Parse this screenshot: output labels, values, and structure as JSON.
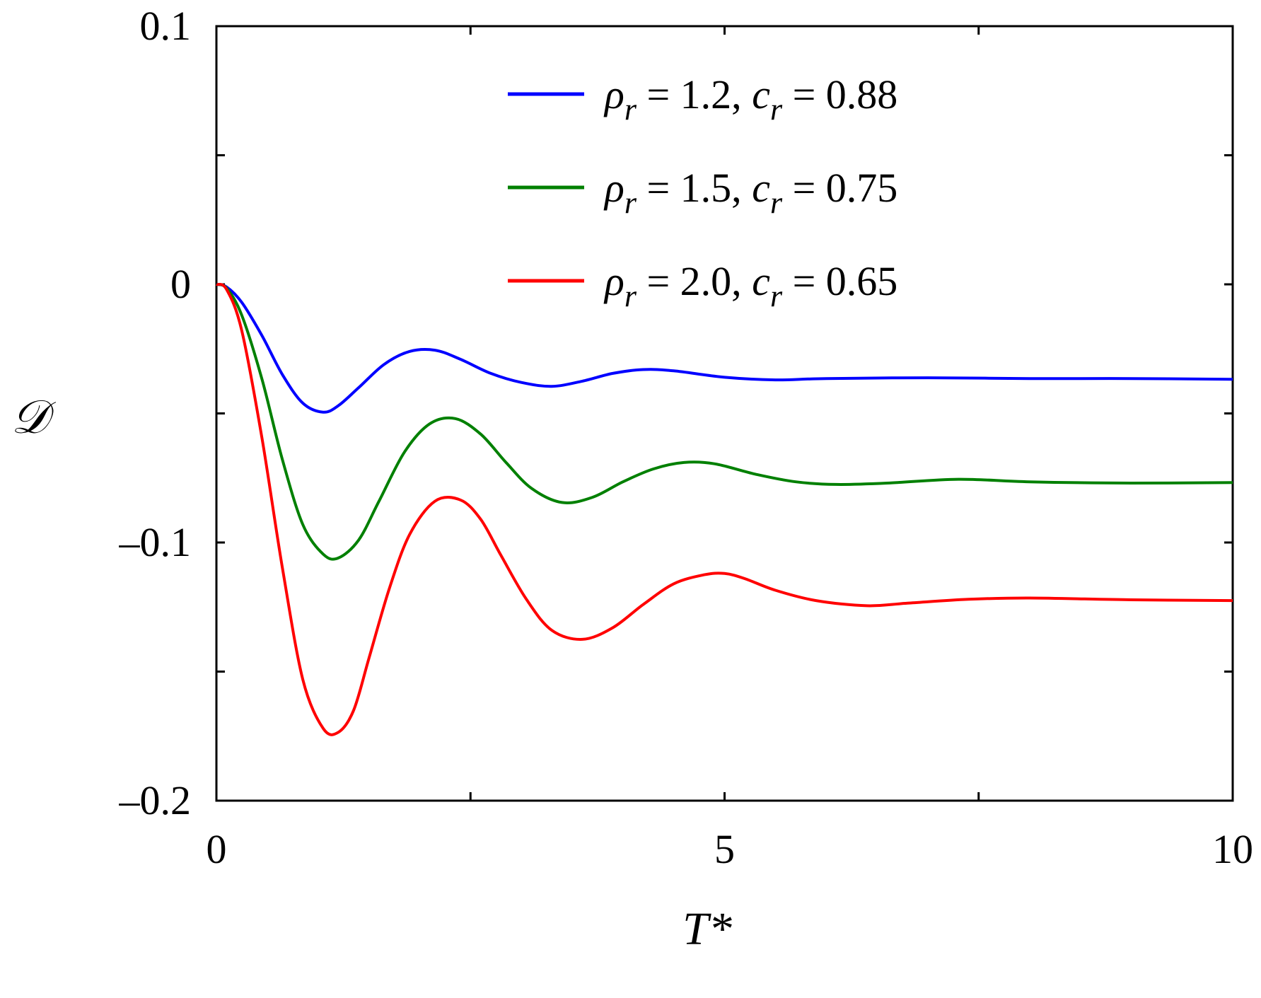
{
  "chart_data": {
    "type": "line",
    "xlabel": "T*",
    "ylabel": "𝒟",
    "xlim": [
      0,
      10
    ],
    "ylim": [
      -0.2,
      0.1
    ],
    "xticks": [
      0,
      2.5,
      5,
      7.5,
      10
    ],
    "yticks": [
      -0.2,
      -0.15,
      -0.1,
      -0.05,
      0,
      0.05,
      0.1
    ],
    "xtick_labels": [
      "0",
      "5",
      "10"
    ],
    "xtick_label_values": [
      0,
      5,
      10
    ],
    "ytick_labels": [
      "0.1",
      "0",
      "–0.1",
      "–0.2"
    ],
    "ytick_label_values": [
      0.1,
      0,
      -0.1,
      -0.2
    ],
    "grid": false,
    "legend_position": "top-right",
    "series": [
      {
        "color": "#0000ff",
        "legend": {
          "rho": "1.2",
          "c": "0.88"
        },
        "x": [
          0,
          0.1,
          0.25,
          0.45,
          0.65,
          0.85,
          1.05,
          1.2,
          1.4,
          1.65,
          1.9,
          2.15,
          2.4,
          2.7,
          3.0,
          3.3,
          3.6,
          3.9,
          4.2,
          4.5,
          5.0,
          5.5,
          6.0,
          7.0,
          8.0,
          9.0,
          10.0
        ],
        "y": [
          0,
          -0.001,
          -0.007,
          -0.02,
          -0.035,
          -0.046,
          -0.0495,
          -0.047,
          -0.04,
          -0.031,
          -0.026,
          -0.0255,
          -0.029,
          -0.0345,
          -0.038,
          -0.0395,
          -0.0375,
          -0.0345,
          -0.033,
          -0.0335,
          -0.036,
          -0.037,
          -0.0365,
          -0.0362,
          -0.0365,
          -0.0365,
          -0.0368
        ]
      },
      {
        "color": "#008000",
        "legend": {
          "rho": "1.5",
          "c": "0.75"
        },
        "x": [
          0,
          0.1,
          0.25,
          0.45,
          0.65,
          0.85,
          1.05,
          1.2,
          1.4,
          1.6,
          1.85,
          2.1,
          2.35,
          2.6,
          2.85,
          3.1,
          3.4,
          3.7,
          4.0,
          4.3,
          4.6,
          4.9,
          5.3,
          5.7,
          6.1,
          6.6,
          7.3,
          8.0,
          9.0,
          10.0
        ],
        "y": [
          0,
          -0.0015,
          -0.012,
          -0.037,
          -0.068,
          -0.093,
          -0.1045,
          -0.106,
          -0.099,
          -0.084,
          -0.065,
          -0.054,
          -0.052,
          -0.058,
          -0.069,
          -0.079,
          -0.0845,
          -0.0825,
          -0.0765,
          -0.0715,
          -0.069,
          -0.0695,
          -0.0735,
          -0.0765,
          -0.0775,
          -0.077,
          -0.0755,
          -0.0765,
          -0.077,
          -0.0768
        ]
      },
      {
        "color": "#ff0000",
        "legend": {
          "rho": "2.0",
          "c": "0.65"
        },
        "x": [
          0,
          0.1,
          0.25,
          0.45,
          0.65,
          0.85,
          1.05,
          1.2,
          1.35,
          1.5,
          1.7,
          1.9,
          2.15,
          2.4,
          2.6,
          2.8,
          3.05,
          3.3,
          3.6,
          3.9,
          4.2,
          4.5,
          4.8,
          5.0,
          5.2,
          5.5,
          5.9,
          6.4,
          6.8,
          7.4,
          8.0,
          9.0,
          10.0
        ],
        "y": [
          0,
          -0.002,
          -0.018,
          -0.06,
          -0.11,
          -0.153,
          -0.172,
          -0.1735,
          -0.165,
          -0.145,
          -0.118,
          -0.097,
          -0.084,
          -0.0835,
          -0.091,
          -0.105,
          -0.122,
          -0.134,
          -0.1375,
          -0.133,
          -0.124,
          -0.116,
          -0.1125,
          -0.112,
          -0.114,
          -0.1185,
          -0.1225,
          -0.1245,
          -0.1235,
          -0.122,
          -0.1215,
          -0.1222,
          -0.1225
        ]
      }
    ]
  }
}
